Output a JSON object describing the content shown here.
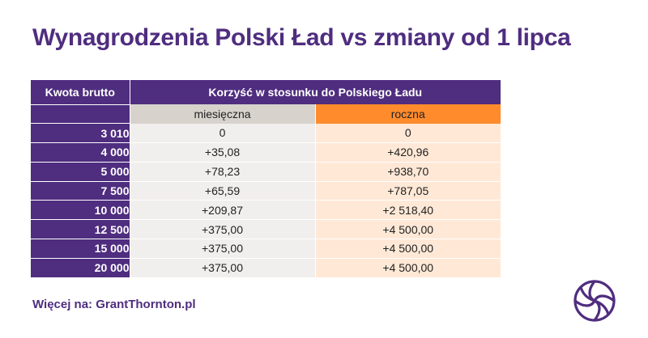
{
  "title": "Wynagrodzenia Polski Ład vs zmiany od 1 lipca",
  "table": {
    "header_kwota": "Kwota brutto",
    "header_korzysc": "Korzyść w stosunku do Polskiego Ładu",
    "header_miesieczna": "miesięczna",
    "header_roczna": "roczna",
    "rows": [
      {
        "kwota": "3 010",
        "miesieczna": "0",
        "roczna": "0"
      },
      {
        "kwota": "4 000",
        "miesieczna": "+35,08",
        "roczna": "+420,96"
      },
      {
        "kwota": "5 000",
        "miesieczna": "+78,23",
        "roczna": "+938,70"
      },
      {
        "kwota": "7 500",
        "miesieczna": "+65,59",
        "roczna": "+787,05"
      },
      {
        "kwota": "10 000",
        "miesieczna": "+209,87",
        "roczna": "+2 518,40"
      },
      {
        "kwota": "12 500",
        "miesieczna": "+375,00",
        "roczna": "+4 500,00"
      },
      {
        "kwota": "15 000",
        "miesieczna": "+375,00",
        "roczna": "+4 500,00"
      },
      {
        "kwota": "20 000",
        "miesieczna": "+375,00",
        "roczna": "+4 500,00"
      }
    ]
  },
  "footer": {
    "text": "Więcej na: GrantThornton.pl"
  },
  "logo": {
    "icon": "grant-thornton-logo-icon",
    "color": "#4f2d7f"
  },
  "colors": {
    "brand_purple": "#4f2d7f",
    "accent_orange": "#ff8b2c",
    "light_orange": "#ffe8d6",
    "gray_header": "#d7d2cc",
    "light_gray": "#f1efed"
  }
}
